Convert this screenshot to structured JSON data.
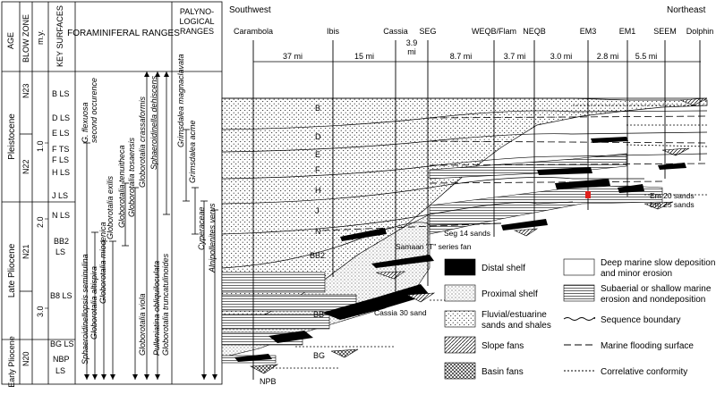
{
  "headers": {
    "age": "AGE",
    "blow_zone": "BLOW ZONE",
    "my": "m.y.",
    "key_surfaces": "KEY SURFACES",
    "foram_ranges": "FORAMINIFERAL RANGES",
    "palyno": [
      "PALYNO-",
      "LOGICAL",
      "RANGES"
    ]
  },
  "ages": [
    "Pleistocene",
    "Late Pliocene",
    "Early Pliocene"
  ],
  "blow_zones": [
    "N23",
    "N22",
    "N21",
    "N20"
  ],
  "my_ticks": [
    "1.0",
    "2.0",
    "3.0"
  ],
  "key_surfaces": [
    "B LS",
    "D LS",
    "E LS",
    "F TS",
    "F LS",
    "H LS",
    "J LS",
    "N LS",
    "BB2",
    "LS",
    "B8 LS",
    "BG LS",
    "NBP",
    "LS"
  ],
  "foram_taxa": [
    "G. flexuosa",
    "second occurence",
    "Sphaeroidinellopsis seminulina",
    "Globorotalia altispira",
    "Globorotalia miocenica",
    "Globorotalia exilis",
    "Globorotalia tenuitheca",
    "Globorotalia tosaensis",
    "Globorotalia crassaformis",
    "Sphaeroidinella dehiscens",
    "Globorotalia viola",
    "Pulleniatina obliquiloculata",
    "Globorotalia truncatulinoides"
  ],
  "palyno_taxa": [
    "Grimsdalea magnaclavata",
    "Grimsdalea acme",
    "Cyperaceae",
    "Alnipollenites verus"
  ],
  "directions": {
    "left": "Southwest",
    "right": "Northeast"
  },
  "wells": [
    "Carambola",
    "Ibis",
    "Cassia",
    "SEG",
    "WEQB/Flam",
    "NEQB",
    "EM3",
    "EM1",
    "SEEM",
    "Dolphin"
  ],
  "distances": [
    "37 mi",
    "15 mi",
    "3.9",
    "mi",
    "8.7 mi",
    "3.7 mi",
    "3.0 mi",
    "2.8 mi",
    "5.5 mi"
  ],
  "sequence_labels": [
    "B",
    "D",
    "E",
    "F",
    "H",
    "J",
    "N",
    "BB2",
    "BB",
    "BG",
    "NPB"
  ],
  "sand_labels": [
    "Em 20 sands",
    "Em 25 sands",
    "Seg 14 sands",
    "Samaan \"T\" series fan",
    "Cassia 30 sand"
  ],
  "legend": [
    {
      "label": "Distal shelf"
    },
    {
      "label": "Proximal shelf"
    },
    {
      "label": "Fluvial/estuarine",
      "label2": "sands and shales"
    },
    {
      "label": "Slope fans"
    },
    {
      "label": "Basin fans"
    },
    {
      "label": "Deep marine slow deposition",
      "label2": "and minor erosion"
    },
    {
      "label": "Subaerial or shallow marine",
      "label2": "erosion and nondeposition"
    },
    {
      "label": "Sequence boundary"
    },
    {
      "label": "Marine flooding surface"
    },
    {
      "label": "Correlative conformity"
    }
  ],
  "colors": {
    "ink": "#000000",
    "marker": "#e0201c",
    "paper": "#ffffff"
  }
}
